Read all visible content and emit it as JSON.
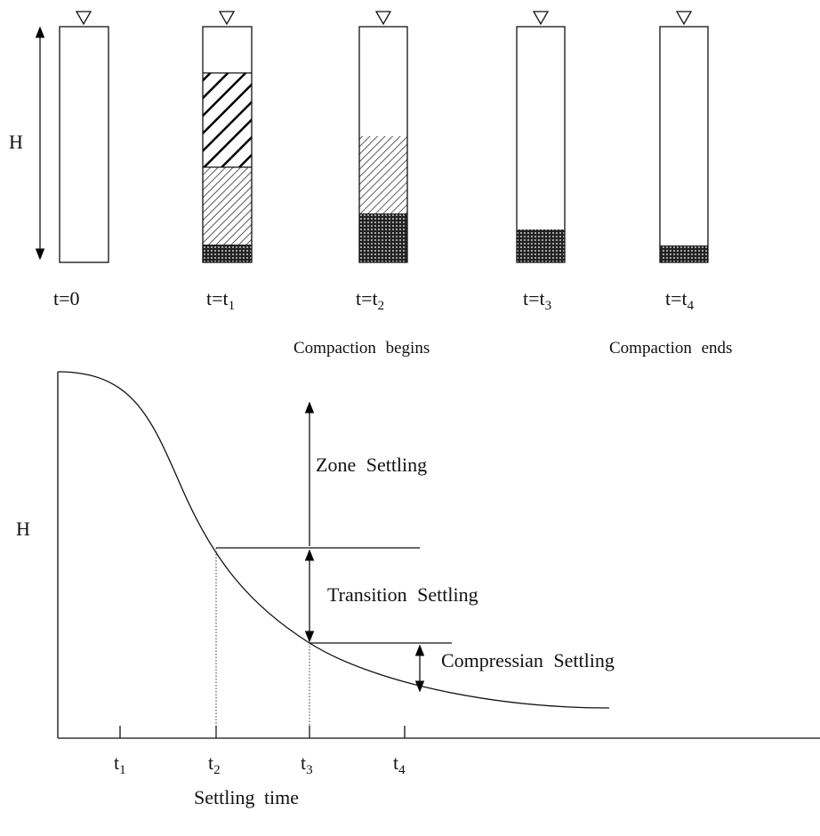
{
  "top": {
    "height_label": "H",
    "columns": [
      {
        "label": "t=0"
      },
      {
        "label": "t=t",
        "sub": "1"
      },
      {
        "label": "t=t",
        "sub": "2",
        "note": "Compaction begins"
      },
      {
        "label": "t=t",
        "sub": "3"
      },
      {
        "label": "t=t",
        "sub": "4",
        "note": "Compaction ends"
      }
    ]
  },
  "graph": {
    "y_label": "H",
    "x_label": "Settling time",
    "ticks": [
      {
        "label": "t",
        "sub": "1"
      },
      {
        "label": "t",
        "sub": "2"
      },
      {
        "label": "t",
        "sub": "3"
      },
      {
        "label": "t",
        "sub": "4"
      }
    ],
    "zones": [
      "Zone Settling",
      "Transition Settling",
      "Compressian Settling"
    ]
  }
}
